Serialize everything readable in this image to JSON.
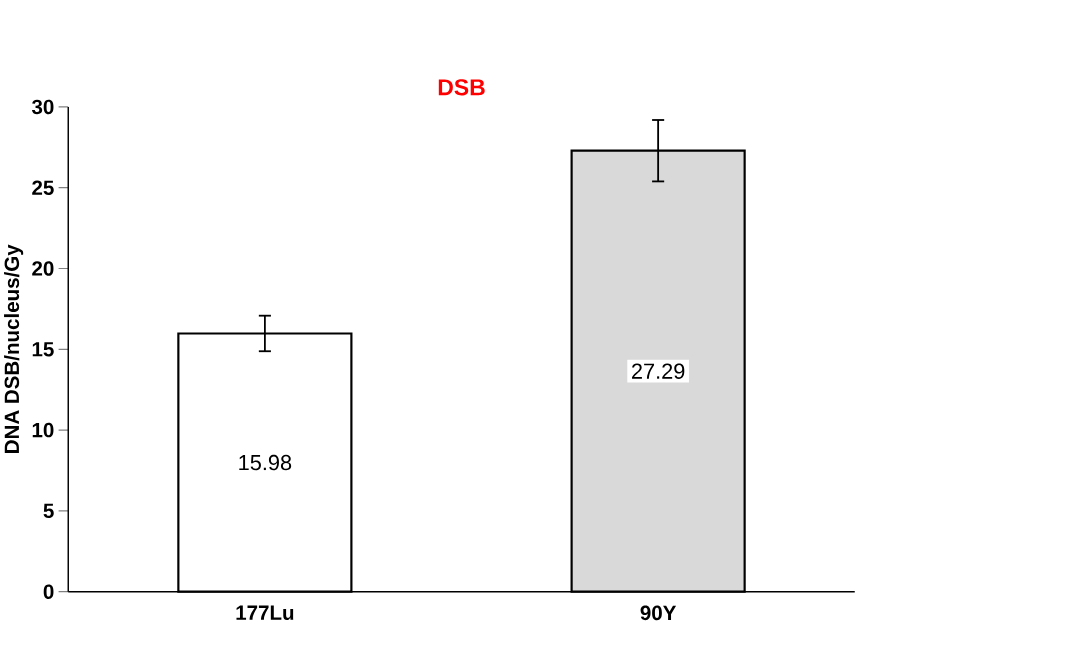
{
  "chart_data": {
    "type": "bar",
    "title": "DSB",
    "ylabel": "DNA DSB/nucleus/Gy",
    "categories": [
      "177Lu",
      "90Y"
    ],
    "values": [
      15.98,
      27.29
    ],
    "colors": [
      "#ffffff",
      "#d9d9d9"
    ],
    "errors": [
      1.1,
      1.9
    ],
    "value_labels": [
      "15.98",
      "27.29"
    ],
    "ylim": [
      0,
      30
    ],
    "yticks": [
      0,
      5,
      10,
      15,
      20,
      25,
      30
    ]
  }
}
